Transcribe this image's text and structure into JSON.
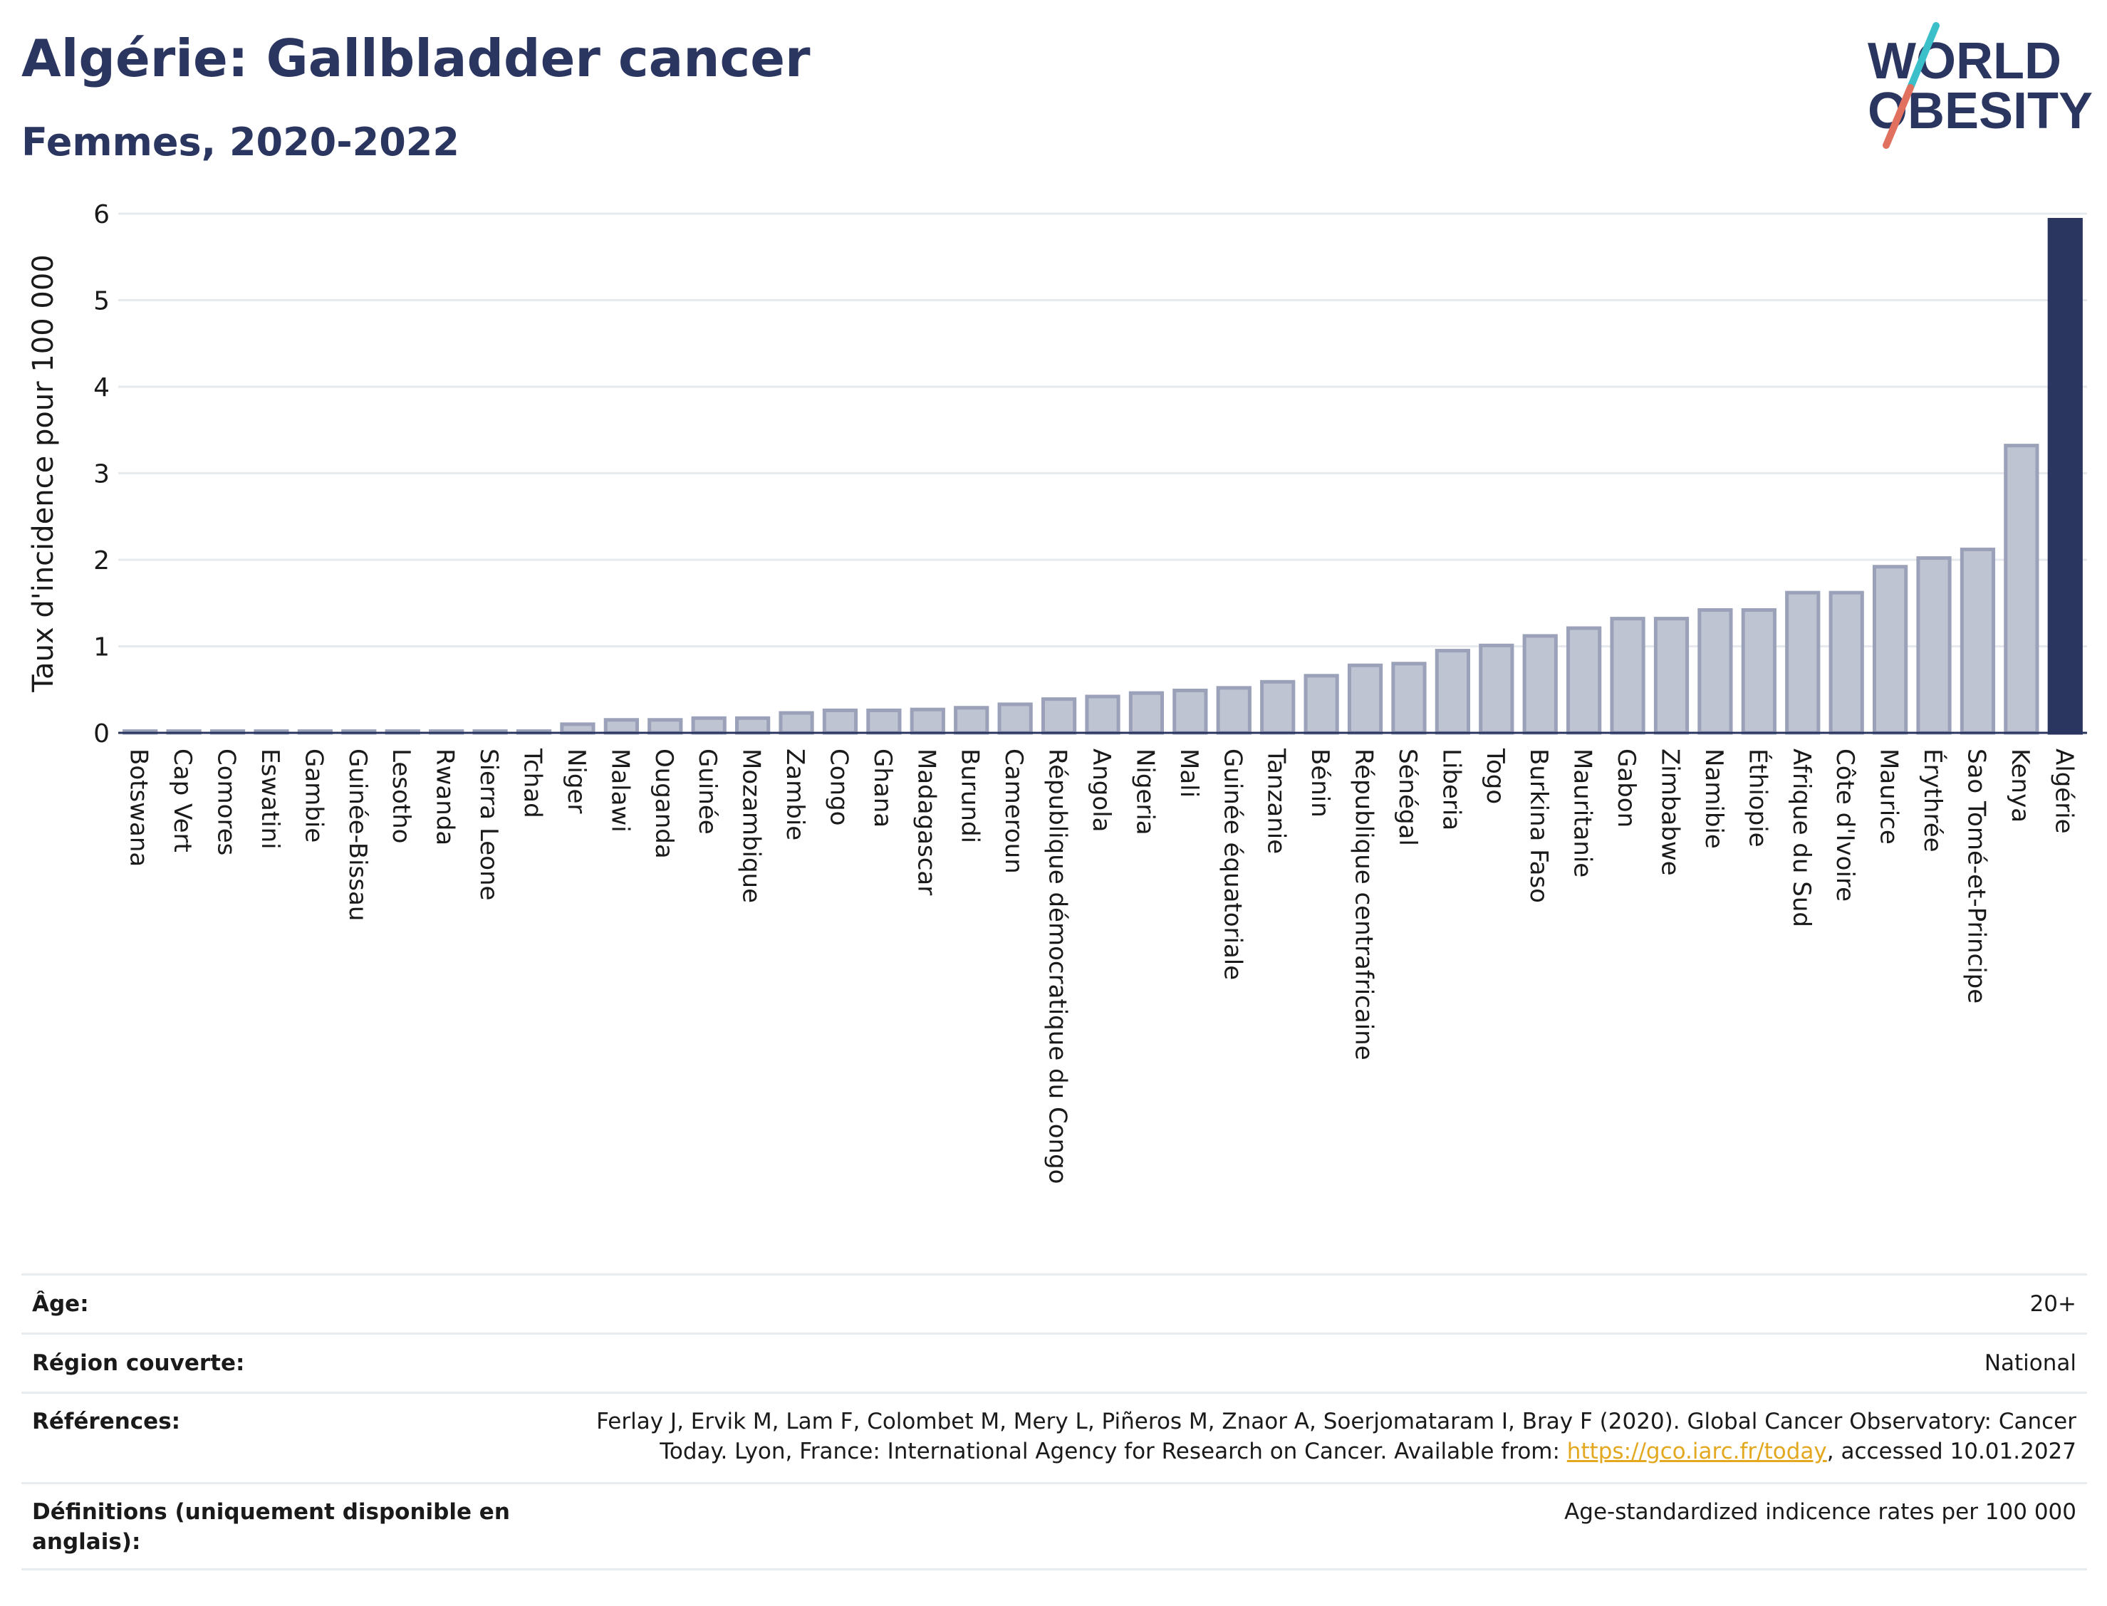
{
  "header": {
    "title": "Algérie: Gallbladder cancer",
    "subtitle": "Femmes, 2020-2022"
  },
  "logo": {
    "line1": "WORLD",
    "line2": "OBESITY",
    "color_text": "#2b3660",
    "color_slash_top": "#3bbfc9",
    "color_slash_bottom": "#e2705f"
  },
  "colors": {
    "bar_default": "#bfc4d2",
    "bar_default_stroke": "#9aa1b8",
    "bar_highlight": "#2b3660",
    "grid": "#e6e9ee",
    "axis": "#2b3660"
  },
  "chart_data": {
    "type": "bar",
    "title": "Algérie: Gallbladder cancer",
    "subtitle": "Femmes, 2020-2022",
    "ylabel": "Taux d'incidence pour 100 000",
    "xlabel": "",
    "ylim": [
      0,
      6
    ],
    "yticks": [
      "0",
      "1",
      "2",
      "3",
      "4",
      "5",
      "6"
    ],
    "grid": true,
    "highlight": "Algérie",
    "categories": [
      "Botswana",
      "Cap Vert",
      "Comores",
      "Eswatini",
      "Gambie",
      "Guinée-Bissau",
      "Lesotho",
      "Rwanda",
      "Sierra Leone",
      "Tchad",
      "Niger",
      "Malawi",
      "Ouganda",
      "Guinée",
      "Mozambique",
      "Zambie",
      "Congo",
      "Ghana",
      "Madagascar",
      "Burundi",
      "Cameroun",
      "République démocratique du Congo",
      "Angola",
      "Nigeria",
      "Mali",
      "Guinée équatoriale",
      "Tanzanie",
      "Bénin",
      "République centrafricaine",
      "Sénégal",
      "Liberia",
      "Togo",
      "Burkina Faso",
      "Mauritanie",
      "Gabon",
      "Zimbabwe",
      "Namibie",
      "Éthiopie",
      "Afrique du Sud",
      "Côte d'Ivoire",
      "Maurice",
      "Érythrée",
      "Sao Tomé-et-Principe",
      "Kenya",
      "Algérie"
    ],
    "values": [
      0.02,
      0.02,
      0.02,
      0.02,
      0.02,
      0.02,
      0.02,
      0.02,
      0.02,
      0.02,
      0.1,
      0.15,
      0.15,
      0.17,
      0.17,
      0.23,
      0.26,
      0.26,
      0.27,
      0.29,
      0.33,
      0.39,
      0.42,
      0.46,
      0.49,
      0.52,
      0.59,
      0.66,
      0.78,
      0.8,
      0.95,
      1.01,
      1.12,
      1.21,
      1.32,
      1.32,
      1.42,
      1.42,
      1.62,
      1.62,
      1.92,
      2.02,
      2.12,
      3.32,
      5.93
    ]
  },
  "info": {
    "rows": [
      {
        "label": "Âge:",
        "value": "20+"
      },
      {
        "label": "Région couverte:",
        "value": "National"
      },
      {
        "label": "Références:",
        "value_line1": "Ferlay J, Ervik M, Lam F, Colombet M, Mery L, Piñeros M, Znaor A, Soerjomataram I, Bray F (2020). Global Cancer Observatory: Cancer",
        "value_line2_pre": "Today. Lyon, France: International Agency for Research on Cancer. Available from: ",
        "link": "https://gco.iarc.fr/today",
        "value_line2_post": ", accessed 10.01.2027"
      },
      {
        "label_line1": "Définitions (uniquement disponible en",
        "label_line2": "anglais):",
        "value": "Age-standardized indicence rates per 100 000"
      }
    ]
  }
}
